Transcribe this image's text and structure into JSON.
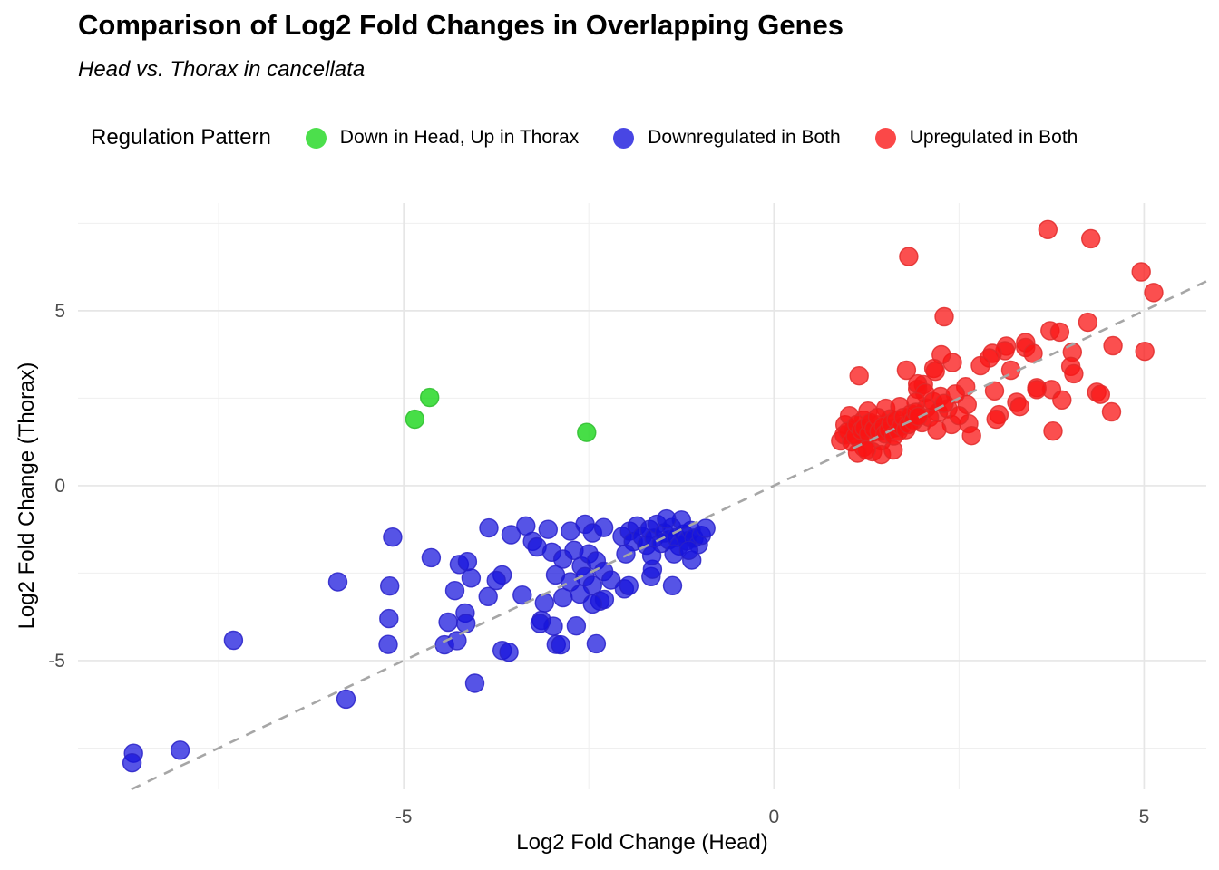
{
  "chart_data": {
    "type": "scatter",
    "title": "Comparison of Log2 Fold Changes in Overlapping Genes",
    "subtitle": "Head vs. Thorax in cancellata",
    "xlabel": "Log2 Fold Change (Head)",
    "ylabel": "Log2 Fold Change (Thorax)",
    "xlim": [
      -9.4,
      5.84
    ],
    "ylim": [
      -8.68,
      8.08
    ],
    "x_major_ticks": [
      -5,
      0,
      5
    ],
    "y_major_ticks": [
      -5,
      0,
      5
    ],
    "x_minor_ticks": [
      -7.5,
      -2.5,
      2.5
    ],
    "y_minor_ticks": [
      -7.5,
      -2.5,
      2.5,
      7.5
    ],
    "grid": true,
    "legend_position": "top",
    "legend_title": "Regulation Pattern",
    "identity_line": {
      "style": "dashed",
      "slope": 1,
      "intercept": 0,
      "color": "#a6a6a6"
    },
    "background_color": "#ffffff",
    "grid_major_color": "#e6e6e6",
    "grid_minor_color": "#efefef",
    "tick_label_color": "#4d4d4d",
    "series": [
      {
        "name": "Downregulated in Both",
        "color": "#1512dd",
        "stroke": "#2821c8",
        "fill_opacity": 0.72,
        "points": [
          [
            -8.65,
            -7.65
          ],
          [
            -8.67,
            -7.92
          ],
          [
            -8.02,
            -7.56
          ],
          [
            -7.3,
            -4.42
          ],
          [
            -5.78,
            -6.1
          ],
          [
            -5.89,
            -2.75
          ],
          [
            -5.15,
            -1.47
          ],
          [
            -5.19,
            -2.87
          ],
          [
            -5.2,
            -3.8
          ],
          [
            -5.21,
            -4.54
          ],
          [
            -4.63,
            -2.06
          ],
          [
            -4.25,
            -2.25
          ],
          [
            -4.14,
            -2.17
          ],
          [
            -4.09,
            -2.64
          ],
          [
            -4.31,
            -3.0
          ],
          [
            -4.4,
            -3.9
          ],
          [
            -4.17,
            -3.64
          ],
          [
            -4.16,
            -3.94
          ],
          [
            -4.45,
            -4.55
          ],
          [
            -4.28,
            -4.43
          ],
          [
            -4.04,
            -5.65
          ],
          [
            -3.85,
            -1.21
          ],
          [
            -3.55,
            -1.4
          ],
          [
            -3.26,
            -1.59
          ],
          [
            -3.67,
            -2.55
          ],
          [
            -3.75,
            -2.71
          ],
          [
            -3.86,
            -3.17
          ],
          [
            -3.4,
            -3.13
          ],
          [
            -3.67,
            -4.71
          ],
          [
            -3.58,
            -4.76
          ],
          [
            -3.14,
            -3.85
          ],
          [
            -2.98,
            -4.02
          ],
          [
            -2.67,
            -4.01
          ],
          [
            -2.94,
            -4.54
          ],
          [
            -2.88,
            -4.55
          ],
          [
            -2.4,
            -4.52
          ],
          [
            -3.16,
            -3.94
          ],
          [
            -3.35,
            -1.15
          ],
          [
            -3.05,
            -1.25
          ],
          [
            -2.75,
            -1.3
          ],
          [
            -2.55,
            -1.1
          ],
          [
            -2.45,
            -1.35
          ],
          [
            -2.3,
            -1.2
          ],
          [
            -3.2,
            -1.75
          ],
          [
            -3.0,
            -1.9
          ],
          [
            -2.85,
            -2.1
          ],
          [
            -2.7,
            -1.85
          ],
          [
            -2.6,
            -2.3
          ],
          [
            -2.5,
            -1.95
          ],
          [
            -2.4,
            -2.15
          ],
          [
            -2.95,
            -2.55
          ],
          [
            -2.75,
            -2.75
          ],
          [
            -2.55,
            -2.6
          ],
          [
            -2.45,
            -2.85
          ],
          [
            -2.3,
            -2.45
          ],
          [
            -2.2,
            -2.7
          ],
          [
            -3.1,
            -3.35
          ],
          [
            -2.85,
            -3.2
          ],
          [
            -2.62,
            -3.1
          ],
          [
            -2.35,
            -3.3
          ],
          [
            -2.29,
            -3.25
          ],
          [
            -2.02,
            -2.95
          ],
          [
            -1.96,
            -2.86
          ],
          [
            -1.66,
            -2.6
          ],
          [
            -1.37,
            -2.86
          ],
          [
            -1.64,
            -2.39
          ],
          [
            -1.11,
            -2.13
          ],
          [
            -2.45,
            -3.38
          ],
          [
            -2.05,
            -1.45
          ],
          [
            -1.95,
            -1.3
          ],
          [
            -1.9,
            -1.6
          ],
          [
            -1.85,
            -1.15
          ],
          [
            -1.78,
            -1.45
          ],
          [
            -1.72,
            -1.7
          ],
          [
            -1.68,
            -1.25
          ],
          [
            -1.62,
            -1.5
          ],
          [
            -1.58,
            -1.1
          ],
          [
            -1.52,
            -1.65
          ],
          [
            -1.48,
            -1.35
          ],
          [
            -1.42,
            -1.55
          ],
          [
            -1.38,
            -1.2
          ],
          [
            -1.32,
            -1.48
          ],
          [
            -1.28,
            -1.72
          ],
          [
            -1.22,
            -1.38
          ],
          [
            -1.18,
            -1.58
          ],
          [
            -1.12,
            -1.28
          ],
          [
            -1.08,
            -1.5
          ],
          [
            -1.02,
            -1.68
          ],
          [
            -0.98,
            -1.42
          ],
          [
            -0.92,
            -1.22
          ],
          [
            -1.25,
            -0.98
          ],
          [
            -1.45,
            -0.95
          ],
          [
            -1.65,
            -2.0
          ],
          [
            -1.35,
            -1.95
          ],
          [
            -1.15,
            -1.85
          ],
          [
            -2.0,
            -1.95
          ]
        ]
      },
      {
        "name": "Upregulated in Both",
        "color": "#fa1414",
        "stroke": "#e02a2a",
        "fill_opacity": 0.75,
        "points": [
          [
            3.7,
            7.32
          ],
          [
            4.28,
            7.06
          ],
          [
            1.82,
            6.55
          ],
          [
            4.96,
            6.11
          ],
          [
            5.13,
            5.52
          ],
          [
            2.3,
            4.83
          ],
          [
            3.73,
            4.43
          ],
          [
            3.86,
            4.39
          ],
          [
            4.24,
            4.67
          ],
          [
            4.58,
            4.0
          ],
          [
            5.01,
            3.84
          ],
          [
            4.03,
            3.82
          ],
          [
            3.4,
            4.09
          ],
          [
            3.4,
            3.95
          ],
          [
            3.14,
            3.99
          ],
          [
            3.12,
            3.86
          ],
          [
            2.95,
            3.78
          ],
          [
            2.91,
            3.65
          ],
          [
            3.5,
            3.78
          ],
          [
            3.2,
            3.3
          ],
          [
            2.79,
            3.43
          ],
          [
            2.41,
            3.52
          ],
          [
            2.26,
            3.74
          ],
          [
            2.16,
            3.35
          ],
          [
            2.18,
            3.27
          ],
          [
            1.79,
            3.3
          ],
          [
            1.15,
            3.14
          ],
          [
            2.02,
            2.89
          ],
          [
            1.94,
            2.76
          ],
          [
            4.01,
            3.41
          ],
          [
            4.05,
            3.2
          ],
          [
            3.55,
            2.8
          ],
          [
            3.75,
            2.75
          ],
          [
            3.89,
            2.45
          ],
          [
            4.36,
            2.67
          ],
          [
            4.41,
            2.61
          ],
          [
            4.56,
            2.11
          ],
          [
            3.77,
            1.56
          ],
          [
            1.94,
            2.91
          ],
          [
            2.04,
            2.65
          ],
          [
            1.92,
            2.39
          ],
          [
            2.06,
            2.22
          ],
          [
            2.22,
            2.09
          ],
          [
            2.59,
            2.83
          ],
          [
            2.61,
            2.32
          ],
          [
            2.98,
            2.71
          ],
          [
            3.04,
            2.03
          ],
          [
            3.28,
            2.38
          ],
          [
            3.32,
            2.26
          ],
          [
            3.55,
            2.75
          ],
          [
            2.63,
            1.77
          ],
          [
            2.67,
            1.43
          ],
          [
            3.0,
            1.9
          ],
          [
            2.0,
            1.8
          ],
          [
            2.1,
            1.95
          ],
          [
            2.15,
            2.4
          ],
          [
            2.25,
            2.55
          ],
          [
            2.35,
            2.2
          ],
          [
            2.45,
            2.62
          ],
          [
            2.4,
            1.75
          ],
          [
            2.5,
            2.0
          ],
          [
            2.2,
            1.6
          ],
          [
            2.3,
            2.35
          ],
          [
            0.96,
            1.74
          ],
          [
            1.02,
            2.0
          ],
          [
            1.08,
            1.61
          ],
          [
            1.15,
            1.36
          ],
          [
            1.21,
            1.87
          ],
          [
            1.27,
            2.13
          ],
          [
            1.33,
            1.52
          ],
          [
            1.39,
            1.74
          ],
          [
            1.45,
            1.28
          ],
          [
            1.51,
            2.21
          ],
          [
            1.57,
            1.91
          ],
          [
            1.63,
            1.65
          ],
          [
            1.7,
            2.26
          ],
          [
            1.21,
            1.1
          ],
          [
            1.33,
            0.97
          ],
          [
            1.45,
            0.89
          ],
          [
            1.61,
            1.02
          ],
          [
            0.9,
            1.28
          ],
          [
            0.95,
            1.45
          ],
          [
            1.0,
            1.55
          ],
          [
            1.05,
            1.25
          ],
          [
            1.1,
            1.42
          ],
          [
            1.12,
            1.75
          ],
          [
            1.18,
            1.58
          ],
          [
            1.22,
            1.65
          ],
          [
            1.28,
            1.48
          ],
          [
            1.3,
            1.8
          ],
          [
            1.35,
            1.62
          ],
          [
            1.4,
            1.95
          ],
          [
            1.42,
            1.55
          ],
          [
            1.48,
            1.7
          ],
          [
            1.5,
            1.48
          ],
          [
            1.55,
            1.6
          ],
          [
            1.58,
            1.78
          ],
          [
            1.62,
            1.42
          ],
          [
            1.65,
            1.88
          ],
          [
            1.68,
            1.55
          ],
          [
            1.72,
            1.7
          ],
          [
            1.75,
            1.95
          ],
          [
            1.78,
            1.6
          ],
          [
            1.82,
            1.75
          ],
          [
            1.85,
            2.05
          ],
          [
            1.88,
            1.85
          ],
          [
            1.92,
            2.1
          ],
          [
            1.95,
            1.98
          ],
          [
            1.13,
            0.93
          ],
          [
            1.25,
            1.02
          ]
        ]
      },
      {
        "name": "Down in Head, Up in Thorax",
        "color": "#19d619",
        "stroke": "#2dbd2d",
        "fill_opacity": 0.8,
        "points": [
          [
            -4.65,
            2.52
          ],
          [
            -4.85,
            1.9
          ],
          [
            -2.53,
            1.52
          ]
        ]
      }
    ],
    "legend_order": [
      "Down in Head, Up in Thorax",
      "Downregulated in Both",
      "Upregulated in Both"
    ]
  },
  "header": {
    "title": "Comparison of Log2 Fold Changes in Overlapping Genes",
    "subtitle": "Head vs. Thorax in cancellata"
  },
  "axes": {
    "x_label": "Log2 Fold Change (Head)",
    "y_label": "Log2 Fold Change (Thorax)",
    "x_tick_labels": [
      "-5",
      "0",
      "5"
    ],
    "y_tick_labels": [
      "-5",
      "0",
      "5"
    ]
  },
  "legend": {
    "title": "Regulation Pattern",
    "items": [
      {
        "label": "Down in Head, Up in Thorax",
        "swatch_color": "#19d619"
      },
      {
        "label": "Downregulated in Both",
        "swatch_color": "#1512dd"
      },
      {
        "label": "Upregulated in Both",
        "swatch_color": "#fa1414"
      }
    ]
  }
}
